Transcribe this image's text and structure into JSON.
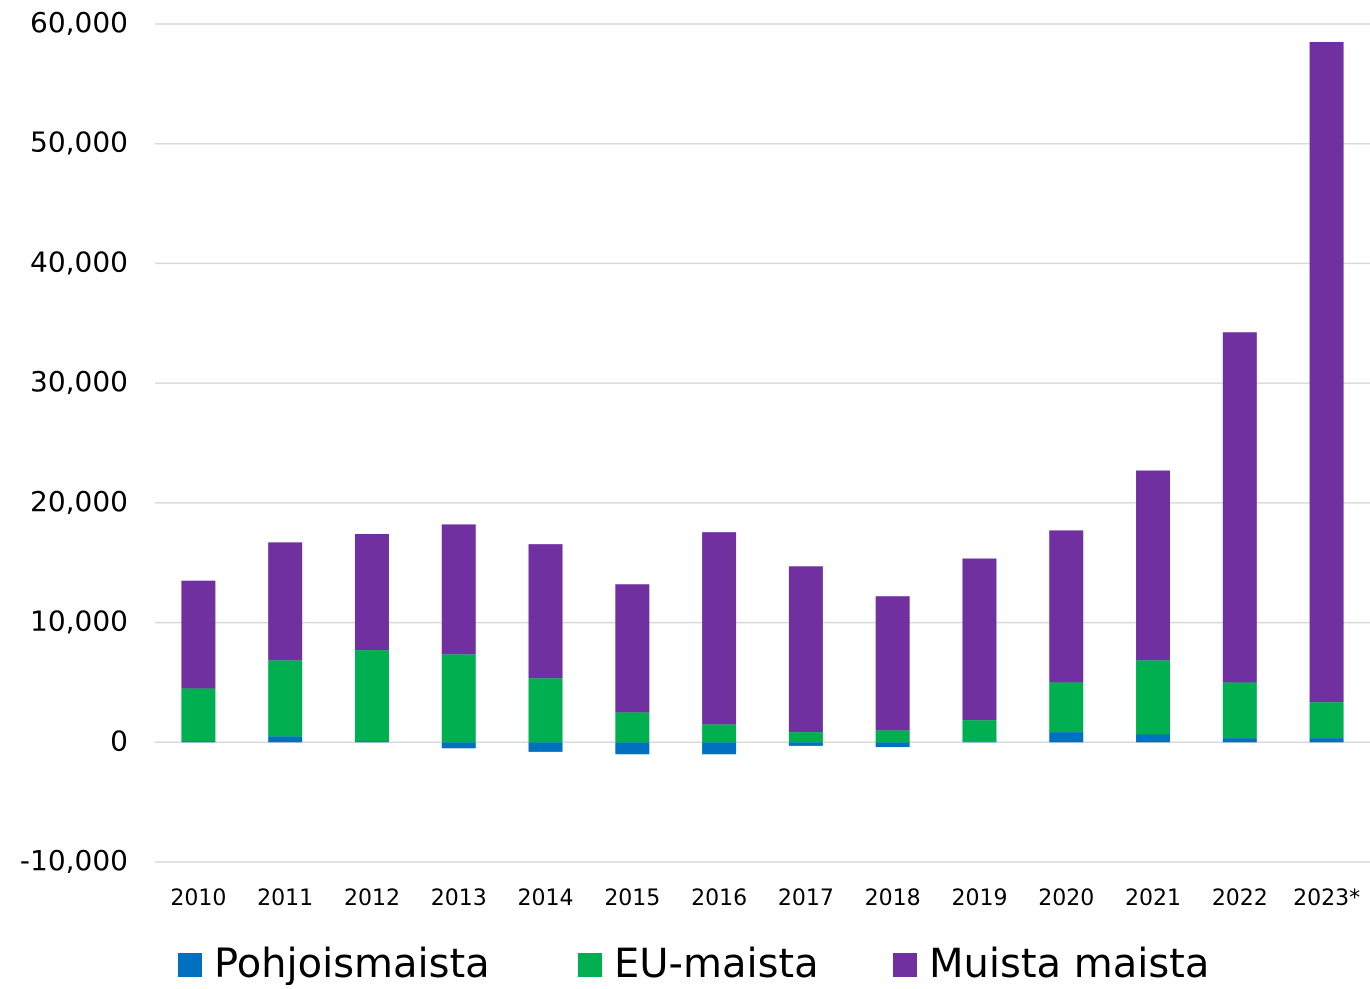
{
  "chart_data": {
    "type": "stacked_bar",
    "categories": [
      "2010",
      "2011",
      "2012",
      "2013",
      "2014",
      "2015",
      "2016",
      "2017",
      "2018",
      "2019",
      "2020",
      "2021",
      "2022",
      "2023*"
    ],
    "series": [
      {
        "name": "Pohjoismaista",
        "color": "#0070c0",
        "values": [
          100,
          500,
          100,
          -500,
          -800,
          -1000,
          -1000,
          -300,
          -400,
          50,
          850,
          650,
          350,
          350
        ]
      },
      {
        "name": "EU-maista",
        "color": "#00b050",
        "values": [
          4400,
          6350,
          7600,
          7350,
          5350,
          2500,
          1500,
          850,
          1000,
          1800,
          4150,
          6200,
          4650,
          3000
        ]
      },
      {
        "name": "Muista maista",
        "color": "#7030a0",
        "values": [
          9000,
          9850,
          9700,
          10850,
          11200,
          10700,
          16050,
          13850,
          11200,
          13500,
          12700,
          15850,
          29250,
          55150
        ]
      }
    ],
    "ylim": [
      -10000,
      60000
    ],
    "yticks": [
      {
        "value": -10000,
        "label": "-10,000"
      },
      0,
      {
        "value": 10000,
        "label": "10,000"
      },
      {
        "value": 20000,
        "label": "20,000"
      },
      {
        "value": 30000,
        "label": "30,000"
      },
      {
        "value": 40000,
        "label": "40,000"
      },
      {
        "value": 50000,
        "label": "50,000"
      },
      {
        "value": 60000,
        "label": "60,000"
      }
    ],
    "grid": true,
    "legend": "bottom"
  }
}
